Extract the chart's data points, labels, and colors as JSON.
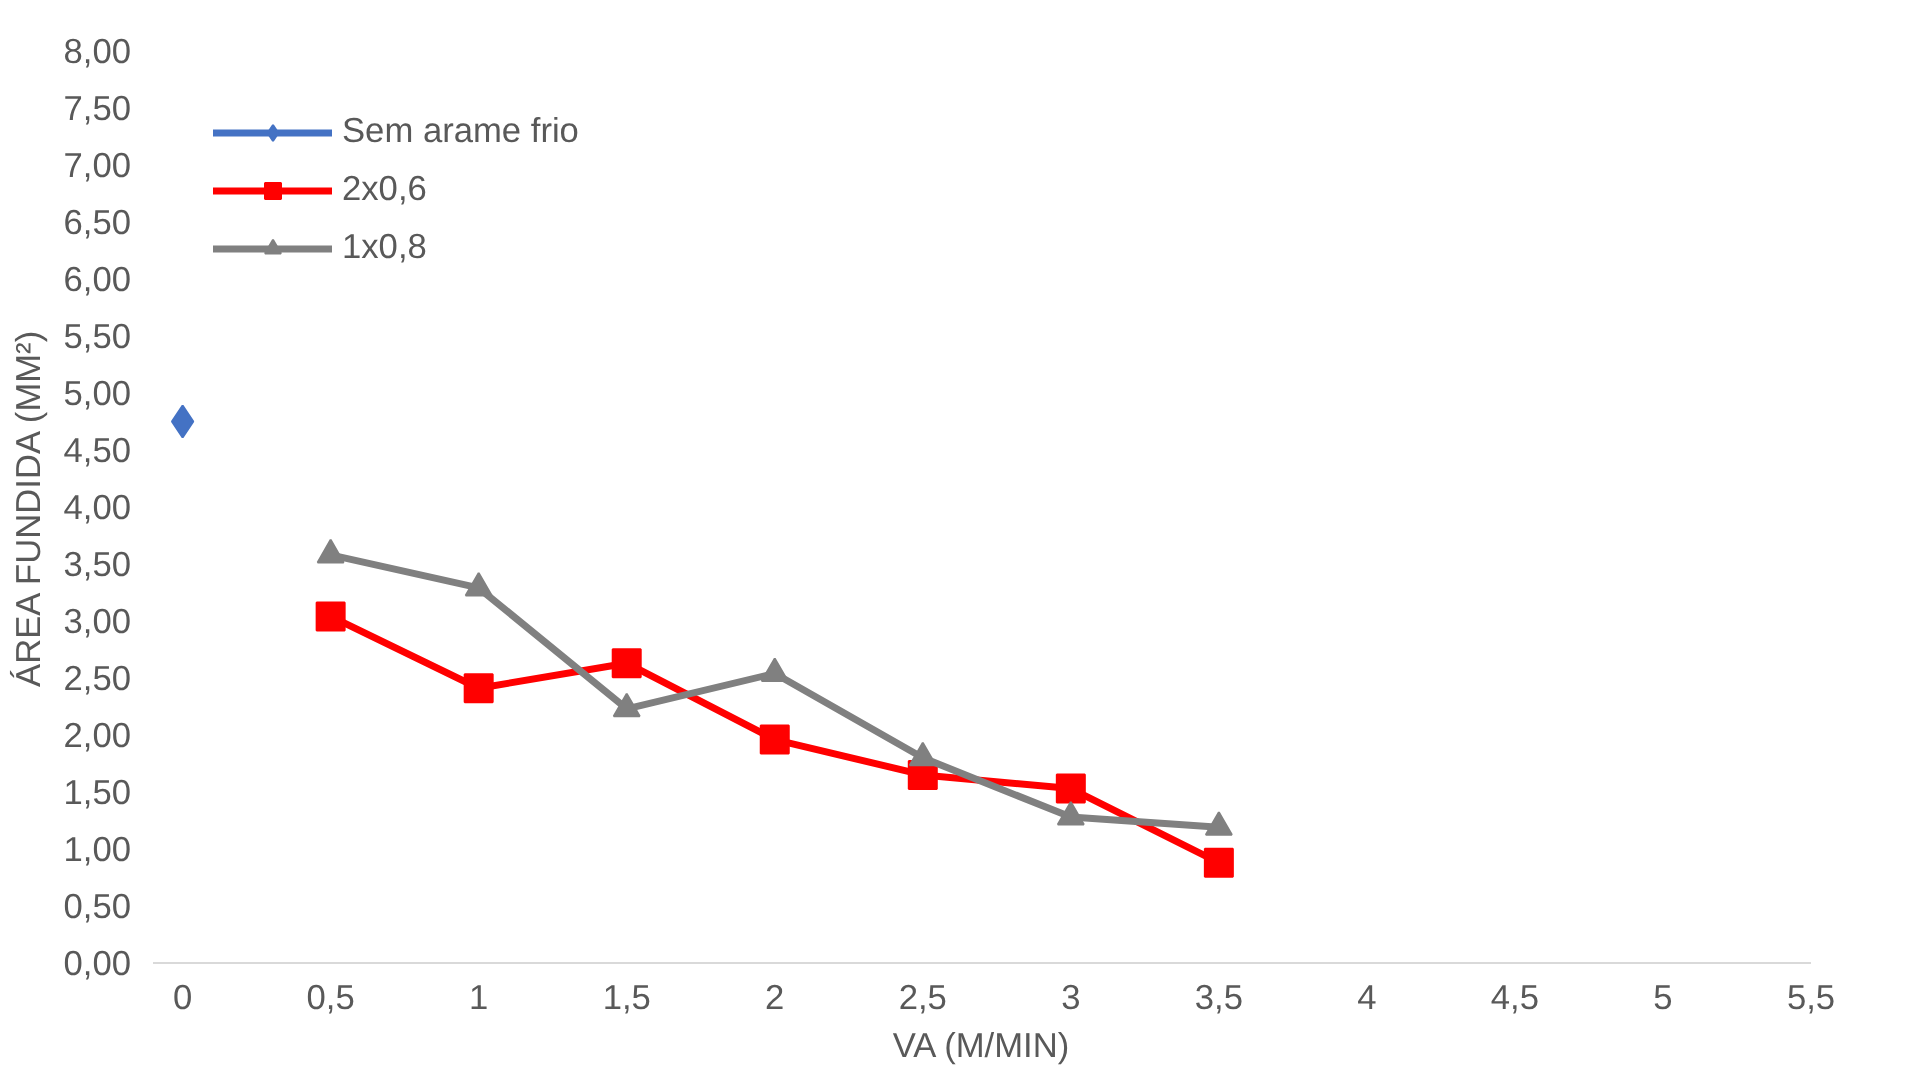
{
  "chart_data": {
    "type": "line",
    "xlabel": "VA (M/MIN)",
    "ylabel": "ÁREA FUNDIDA (MM²)",
    "xlim": [
      -0.1,
      5.5
    ],
    "xticks": [
      0,
      {
        "value": 0.5,
        "label": "0,5"
      },
      1,
      {
        "value": 1.5,
        "label": "1,5"
      },
      2,
      {
        "value": 2.5,
        "label": "2,5"
      },
      3,
      {
        "value": 3.5,
        "label": "3,5"
      },
      4,
      {
        "value": 4.5,
        "label": "4,5"
      },
      5,
      {
        "value": 5.5,
        "label": "5,5"
      }
    ],
    "ylim": [
      0,
      8
    ],
    "yticks": [
      {
        "value": 0,
        "label": "0,00"
      },
      {
        "value": 0.5,
        "label": "0,50"
      },
      {
        "value": 1,
        "label": "1,00"
      },
      {
        "value": 1.5,
        "label": "1,50"
      },
      {
        "value": 2,
        "label": "2,00"
      },
      {
        "value": 2.5,
        "label": "2,50"
      },
      {
        "value": 3,
        "label": "3,00"
      },
      {
        "value": 3.5,
        "label": "3,50"
      },
      {
        "value": 4,
        "label": "4,00"
      },
      {
        "value": 4.5,
        "label": "4,50"
      },
      {
        "value": 5,
        "label": "5,00"
      },
      {
        "value": 5.5,
        "label": "5,50"
      },
      {
        "value": 6,
        "label": "6,00"
      },
      {
        "value": 6.5,
        "label": "6,50"
      },
      {
        "value": 7,
        "label": "7,00"
      },
      {
        "value": 7.5,
        "label": "7,50"
      },
      {
        "value": 8,
        "label": "8,00"
      }
    ],
    "grid": false,
    "legend": "top left",
    "line_style": "solid",
    "series": [
      {
        "name": "Sem arame frio",
        "color": "#4472c4",
        "marker": "diamond",
        "x": [
          0
        ],
        "values": [
          4.75
        ]
      },
      {
        "name": "2x0,6",
        "color": "#ff0000",
        "marker": "square",
        "x": [
          0.5,
          1,
          1.5,
          2,
          2.5,
          3,
          3.5
        ],
        "values": [
          3.04,
          2.41,
          2.63,
          1.96,
          1.65,
          1.53,
          0.88
        ]
      },
      {
        "name": "1x0,8",
        "color": "#808080",
        "marker": "triangle",
        "x": [
          0.5,
          1,
          1.5,
          2,
          2.5,
          3,
          3.5
        ],
        "values": [
          3.58,
          3.29,
          2.23,
          2.54,
          1.8,
          1.28,
          1.19
        ]
      }
    ]
  }
}
